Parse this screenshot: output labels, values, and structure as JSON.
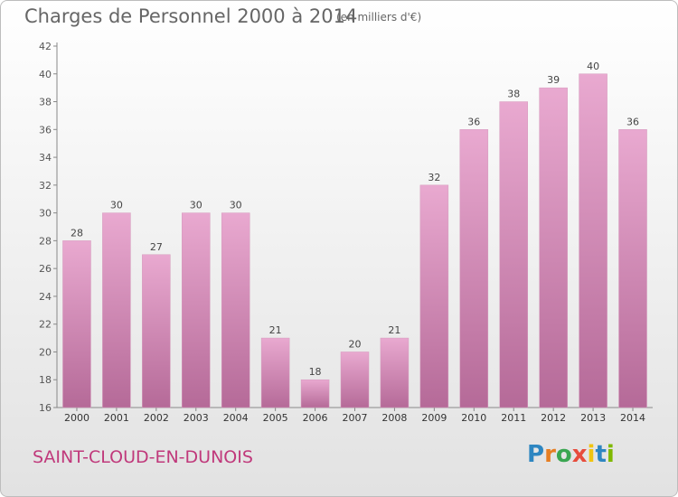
{
  "title": "Charges de Personnel 2000 à 2014",
  "subtitle": "(en milliers d'€)",
  "commune": "SAINT-CLOUD-EN-DUNOIS",
  "logo": {
    "letters": [
      "P",
      "r",
      "o",
      "x",
      "i",
      "t",
      "i"
    ],
    "colors": [
      "#2e86c1",
      "#e67e22",
      "#3aa651",
      "#e74c3c",
      "#f1c40f",
      "#2e86c1",
      "#7fb800"
    ]
  },
  "colors": {
    "bar_top": "#e9a9d0",
    "bar_bottom": "#b56a98",
    "accent": "#c0397b"
  },
  "chart_data": {
    "type": "bar",
    "title": "Charges de Personnel 2000 à 2014",
    "subtitle": "(en milliers d'€)",
    "categories": [
      "2000",
      "2001",
      "2002",
      "2003",
      "2004",
      "2005",
      "2006",
      "2007",
      "2008",
      "2009",
      "2010",
      "2011",
      "2012",
      "2013",
      "2014"
    ],
    "values": [
      28,
      30,
      27,
      30,
      30,
      21,
      18,
      20,
      21,
      32,
      36,
      38,
      39,
      40,
      36
    ],
    "ylim": [
      16,
      42
    ],
    "yticks": [
      16,
      18,
      20,
      22,
      24,
      26,
      28,
      30,
      32,
      34,
      36,
      38,
      40,
      42
    ],
    "grid": false,
    "xlabel": "",
    "ylabel": ""
  }
}
